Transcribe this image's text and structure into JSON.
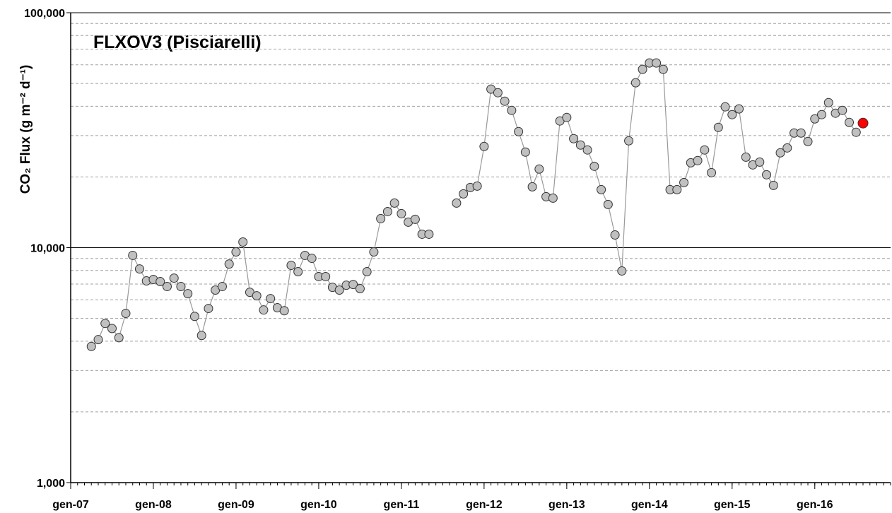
{
  "chart_data": {
    "type": "line",
    "title": "FLXOV3 (Pisciarelli)",
    "ylabel": "CO₂ Flux (g m⁻² d⁻¹)",
    "log_y": true,
    "ylim": [
      1000,
      100000
    ],
    "yticks": [
      {
        "value": 1000,
        "label": "1,000"
      },
      {
        "value": 10000,
        "label": "10,000"
      },
      {
        "value": 100000,
        "label": "100,000"
      }
    ],
    "minor_yticks": [
      2000,
      3000,
      4000,
      5000,
      6000,
      7000,
      8000,
      9000,
      20000,
      30000,
      40000,
      50000,
      60000,
      70000,
      80000,
      90000
    ],
    "xlim": [
      "2007-01",
      "2016-12"
    ],
    "xticks": [
      {
        "value": "2007-01",
        "label": "gen-07"
      },
      {
        "value": "2008-01",
        "label": "gen-08"
      },
      {
        "value": "2009-01",
        "label": "gen-09"
      },
      {
        "value": "2010-01",
        "label": "gen-10"
      },
      {
        "value": "2011-01",
        "label": "gen-11"
      },
      {
        "value": "2012-01",
        "label": "gen-12"
      },
      {
        "value": "2013-01",
        "label": "gen-13"
      },
      {
        "value": "2014-01",
        "label": "gen-14"
      },
      {
        "value": "2015-01",
        "label": "gen-15"
      },
      {
        "value": "2016-01",
        "label": "gen-16"
      }
    ],
    "grid": true,
    "series": [
      {
        "color": "#c0c0c0",
        "line_color": "#999999",
        "x": [
          "2007-04",
          "2007-05",
          "2007-06",
          "2007-07",
          "2007-08",
          "2007-09",
          "2007-10",
          "2007-11",
          "2007-12",
          "2008-01",
          "2008-02",
          "2008-03",
          "2008-04",
          "2008-05",
          "2008-06",
          "2008-07",
          "2008-08",
          "2008-09",
          "2008-10",
          "2008-11",
          "2008-12",
          "2009-01",
          "2009-02",
          "2009-03",
          "2009-04",
          "2009-05",
          "2009-06",
          "2009-07",
          "2009-08",
          "2009-09",
          "2009-10",
          "2009-11",
          "2009-12",
          "2010-01",
          "2010-02",
          "2010-03",
          "2010-04",
          "2010-05",
          "2010-06",
          "2010-07",
          "2010-08",
          "2010-09",
          "2010-10",
          "2010-11",
          "2010-12",
          "2011-01",
          "2011-02",
          "2011-03",
          "2011-04",
          "2011-05",
          "2011-06",
          "2011-07",
          "2011-08",
          "2011-09",
          "2011-10",
          "2011-11",
          "2011-12",
          "2012-01",
          "2012-02",
          "2012-03",
          "2012-04",
          "2012-05",
          "2012-06",
          "2012-07",
          "2012-08",
          "2012-09",
          "2012-10",
          "2012-11",
          "2012-12",
          "2013-01",
          "2013-02",
          "2013-03",
          "2013-04",
          "2013-05",
          "2013-06",
          "2013-07",
          "2013-08",
          "2013-09",
          "2013-10",
          "2013-11",
          "2013-12",
          "2014-01",
          "2014-02",
          "2014-03",
          "2014-04",
          "2014-05",
          "2014-06",
          "2014-07",
          "2014-08",
          "2014-09",
          "2014-10",
          "2014-11",
          "2014-12",
          "2015-01",
          "2015-02",
          "2015-03",
          "2015-04",
          "2015-05",
          "2015-06",
          "2015-07",
          "2015-08",
          "2015-09",
          "2015-10",
          "2015-11",
          "2015-12",
          "2016-01",
          "2016-02",
          "2016-03",
          "2016-04",
          "2016-05",
          "2016-06",
          "2016-07"
        ],
        "values": [
          3800,
          4060,
          4760,
          4530,
          4140,
          5250,
          9270,
          8120,
          7220,
          7320,
          7170,
          6830,
          7420,
          6830,
          6370,
          5100,
          4230,
          5510,
          6600,
          6830,
          8520,
          9590,
          10570,
          6460,
          6240,
          5430,
          6070,
          5550,
          5390,
          8410,
          7900,
          9270,
          9010,
          7530,
          7530,
          6780,
          6600,
          6920,
          6970,
          6690,
          7900,
          9590,
          13290,
          14240,
          15480,
          13950,
          12840,
          13200,
          11410,
          11410,
          null,
          null,
          null,
          15480,
          16940,
          18030,
          18280,
          26960,
          47280,
          45660,
          42020,
          38400,
          31190,
          25510,
          18160,
          21600,
          16480,
          16250,
          34610,
          35830,
          29100,
          27340,
          26060,
          22200,
          17660,
          15270,
          11330,
          7960,
          28500,
          50330,
          57410,
          61100,
          61100,
          57410,
          17660,
          17660,
          18930,
          22980,
          23470,
          26060,
          20860,
          32510,
          39760,
          36840,
          38950,
          24290,
          22510,
          23140,
          20430,
          18410,
          25330,
          26580,
          30760,
          30760,
          28310,
          35330,
          36840,
          41440,
          37350,
          38400,
          34120,
          30980
        ]
      },
      {
        "color": "#ff0000",
        "x": [
          "2016-08"
        ],
        "values": [
          33890
        ]
      }
    ]
  }
}
